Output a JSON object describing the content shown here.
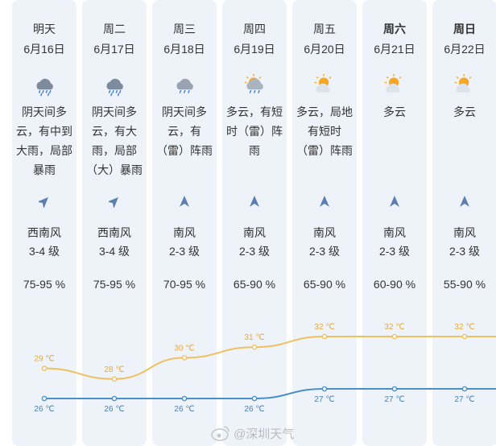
{
  "colors": {
    "column_bg": "#eef3fa",
    "high_line": "#f0c060",
    "high_text": "#e8a83a",
    "low_line": "#4a90c8",
    "low_text": "#4a80b0"
  },
  "days": [
    {
      "day": "明天",
      "date": "6月16日",
      "icon": "heavy-rain-icon",
      "desc": "阴天间多云，有中到大雨，局部暴雨",
      "wind_dir": "西南风",
      "wind_level": "3-4 级",
      "wind_arrow": "northeast-arrow",
      "humidity": "75-95 %",
      "bold": false
    },
    {
      "day": "周二",
      "date": "6月17日",
      "icon": "heavy-rain-icon",
      "desc": "阴天间多云，有大雨，局部（大）暴雨",
      "wind_dir": "西南风",
      "wind_level": "3-4 级",
      "wind_arrow": "northeast-arrow",
      "humidity": "75-95 %",
      "bold": false
    },
    {
      "day": "周三",
      "date": "6月18日",
      "icon": "rain-icon",
      "desc": "阴天间多云，有（雷）阵雨",
      "wind_dir": "南风",
      "wind_level": "2-3 级",
      "wind_arrow": "north-arrow",
      "humidity": "70-95 %",
      "bold": false
    },
    {
      "day": "周四",
      "date": "6月19日",
      "icon": "cloudy-rain-icon",
      "desc": "多云，有短时（雷）阵雨",
      "wind_dir": "南风",
      "wind_level": "2-3 级",
      "wind_arrow": "north-arrow",
      "humidity": "65-90 %",
      "bold": false
    },
    {
      "day": "周五",
      "date": "6月20日",
      "icon": "partly-cloudy-icon",
      "desc": "多云，局地有短时（雷）阵雨",
      "wind_dir": "南风",
      "wind_level": "2-3 级",
      "wind_arrow": "north-arrow",
      "humidity": "65-90 %",
      "bold": false
    },
    {
      "day": "周六",
      "date": "6月21日",
      "icon": "partly-cloudy-icon",
      "desc": "多云",
      "wind_dir": "南风",
      "wind_level": "2-3 级",
      "wind_arrow": "north-arrow",
      "humidity": "60-90 %",
      "bold": true
    },
    {
      "day": "周日",
      "date": "6月22日",
      "icon": "partly-cloudy-icon",
      "desc": "多云",
      "wind_dir": "南风",
      "wind_level": "2-3 级",
      "wind_arrow": "north-arrow",
      "humidity": "55-90 %",
      "bold": true
    }
  ],
  "chart_data": {
    "type": "line",
    "categories": [
      "6月16日",
      "6月17日",
      "6月18日",
      "6月19日",
      "6月20日",
      "6月21日",
      "6月22日"
    ],
    "series": [
      {
        "values": [
          29,
          28,
          30,
          31,
          32,
          32,
          32
        ],
        "labels": [
          "29 ℃",
          "28 ℃",
          "30 ℃",
          "31 ℃",
          "32 ℃",
          "32 ℃",
          "32 ℃"
        ]
      },
      {
        "values": [
          26,
          26,
          26,
          26,
          27,
          27,
          27
        ],
        "labels": [
          "26 ℃",
          "26 ℃",
          "26 ℃",
          "26 ℃",
          "27 ℃",
          "27 ℃",
          "27 ℃"
        ]
      }
    ]
  },
  "watermark": "@深圳天气"
}
